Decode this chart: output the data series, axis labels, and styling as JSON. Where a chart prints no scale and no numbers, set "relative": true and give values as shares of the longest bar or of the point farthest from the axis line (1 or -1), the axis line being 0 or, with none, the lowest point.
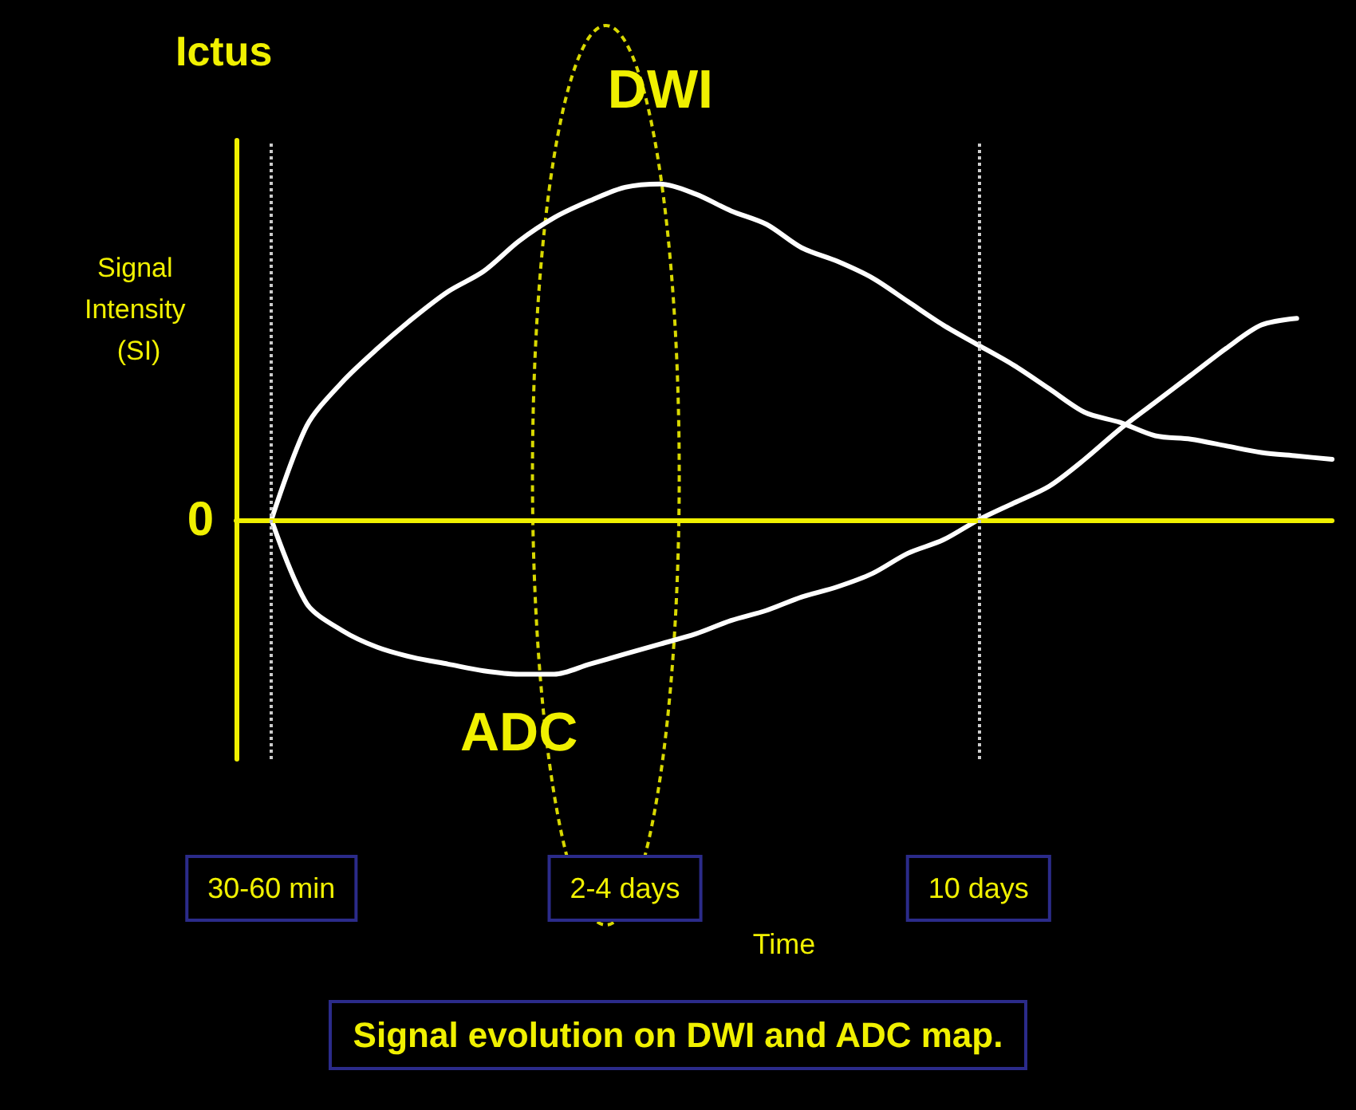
{
  "chart_data": {
    "type": "line",
    "title": "Ictus",
    "xlabel": "Time",
    "ylabel": "Signal Intensity (SI)",
    "relative": true,
    "categories": [
      null,
      "30-60 min",
      null,
      null,
      null,
      null,
      null,
      null,
      null,
      null,
      null,
      "2-4 days",
      null,
      null,
      null,
      null,
      null,
      null,
      null,
      null,
      null,
      "10 days",
      null,
      null,
      null,
      null,
      null,
      null,
      null,
      null,
      null,
      null
    ],
    "series": [
      {
        "name": "DWI",
        "color": "#ffffff",
        "values": [
          null,
          0,
          0.28,
          0.41,
          0.51,
          0.6,
          0.68,
          0.74,
          0.83,
          0.9,
          0.95,
          0.99,
          1,
          0.97,
          0.92,
          0.88,
          0.81,
          0.77,
          0.72,
          0.65,
          0.58,
          0.52,
          0.46,
          0.39,
          0.32,
          0.29,
          0.25,
          0.24,
          0.22,
          0.2,
          0.19,
          0.18
        ]
      },
      {
        "name": "ADC",
        "color": "#ffffff",
        "values": [
          null,
          0,
          -0.25,
          -0.33,
          -0.38,
          -0.41,
          -0.43,
          -0.45,
          -0.46,
          -0.46,
          -0.43,
          -0.4,
          -0.37,
          -0.34,
          -0.3,
          -0.27,
          -0.23,
          -0.2,
          -0.16,
          -0.1,
          -0.06,
          0,
          0.05,
          0.1,
          0.18,
          0.27,
          0.35,
          0.43,
          0.51,
          0.58,
          0.6,
          null
        ]
      }
    ],
    "ref_lines": [
      {
        "axis": "y",
        "value": 0,
        "label": "0",
        "color": "#f0f000",
        "line_style": "solid"
      },
      {
        "axis": "x",
        "value": "30-60 min",
        "color": "#cccccc",
        "line_style": "dotted"
      },
      {
        "axis": "x",
        "value": "10 days",
        "color": "#cccccc",
        "line_style": "dotted"
      }
    ],
    "annotations": [
      "Signal evolution on DWI and ADC map."
    ],
    "grid": false,
    "legend": false,
    "marker": "none",
    "line_style": "solid"
  }
}
